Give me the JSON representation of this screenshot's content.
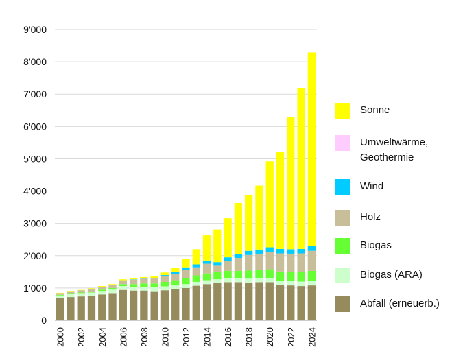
{
  "chart_data": {
    "type": "bar",
    "stacked": true,
    "title": "",
    "xlabel": "",
    "ylabel": "",
    "ylim": [
      0,
      9000
    ],
    "yticks": [
      {
        "value": 0,
        "label": "0"
      },
      {
        "value": 1000,
        "label": "1'000"
      },
      {
        "value": 2000,
        "label": "2'000"
      },
      {
        "value": 3000,
        "label": "3'000"
      },
      {
        "value": 4000,
        "label": "4'000"
      },
      {
        "value": 5000,
        "label": "5'000"
      },
      {
        "value": 6000,
        "label": "6'000"
      },
      {
        "value": 7000,
        "label": "7'000"
      },
      {
        "value": 8000,
        "label": "8'000"
      },
      {
        "value": 9000,
        "label": "9'000"
      }
    ],
    "grid": true,
    "legend_position": "right",
    "categories": [
      "2000",
      "2001",
      "2002",
      "2003",
      "2004",
      "2005",
      "2006",
      "2007",
      "2008",
      "2009",
      "2010",
      "2011",
      "2012",
      "2013",
      "2014",
      "2015",
      "2016",
      "2017",
      "2018",
      "2019",
      "2020",
      "2021",
      "2022",
      "2023",
      "2024"
    ],
    "xtick_labels": [
      "2000",
      "",
      "2002",
      "",
      "2004",
      "",
      "2006",
      "",
      "2008",
      "",
      "2010",
      "",
      "2012",
      "",
      "2014",
      "",
      "2016",
      "",
      "2018",
      "",
      "2020",
      "",
      "2022",
      "",
      "2024"
    ],
    "series": [
      {
        "name": "Abfall (erneuerb.)",
        "color": "#958B5C",
        "values": [
          680,
          720,
          740,
          760,
          800,
          840,
          940,
          920,
          920,
          900,
          930,
          960,
          1000,
          1070,
          1120,
          1150,
          1180,
          1180,
          1170,
          1180,
          1180,
          1100,
          1080,
          1060,
          1080
        ]
      },
      {
        "name": "Biogas (ARA)",
        "color": "#CCFFCC",
        "values": [
          90,
          100,
          100,
          100,
          110,
          110,
          120,
          120,
          120,
          120,
          120,
          120,
          120,
          120,
          120,
          120,
          120,
          120,
          120,
          120,
          130,
          130,
          140,
          140,
          150
        ]
      },
      {
        "name": "Biogas",
        "color": "#66FF33",
        "values": [
          20,
          20,
          20,
          30,
          40,
          50,
          60,
          80,
          100,
          120,
          140,
          160,
          180,
          200,
          210,
          220,
          230,
          230,
          250,
          260,
          270,
          280,
          280,
          290,
          300
        ]
      },
      {
        "name": "Holz",
        "color": "#C8BE9A",
        "values": [
          50,
          60,
          70,
          80,
          90,
          100,
          120,
          140,
          150,
          160,
          180,
          200,
          260,
          250,
          300,
          200,
          300,
          400,
          480,
          500,
          540,
          560,
          560,
          580,
          620
        ]
      },
      {
        "name": "Wind",
        "color": "#00CCFF",
        "values": [
          0,
          0,
          0,
          0,
          0,
          0,
          0,
          10,
          10,
          10,
          30,
          60,
          80,
          90,
          100,
          110,
          120,
          120,
          130,
          130,
          140,
          140,
          140,
          140,
          150
        ]
      },
      {
        "name": "Umweltwärme, Geothermie",
        "color": "#FFCCFF",
        "values": [
          0,
          0,
          0,
          0,
          0,
          0,
          0,
          0,
          0,
          0,
          0,
          0,
          0,
          0,
          0,
          0,
          0,
          0,
          0,
          0,
          0,
          0,
          0,
          0,
          0
        ]
      },
      {
        "name": "Sonne",
        "color": "#FFFF00",
        "values": [
          10,
          10,
          10,
          20,
          20,
          20,
          30,
          40,
          40,
          50,
          80,
          130,
          260,
          470,
          780,
          1010,
          1210,
          1580,
          1730,
          1980,
          2660,
          2990,
          4100,
          4970,
          5990
        ]
      }
    ],
    "legend_order": [
      "Sonne",
      "Umweltwärme, Geothermie",
      "Wind",
      "Holz",
      "Biogas",
      "Biogas (ARA)",
      "Abfall (erneuerb.)"
    ],
    "legend_labels": [
      "Sonne",
      "Umweltwärme,\nGeothermie",
      "Wind",
      "Holz",
      "Biogas",
      "Biogas (ARA)",
      "Abfall (erneuerb.)"
    ]
  }
}
